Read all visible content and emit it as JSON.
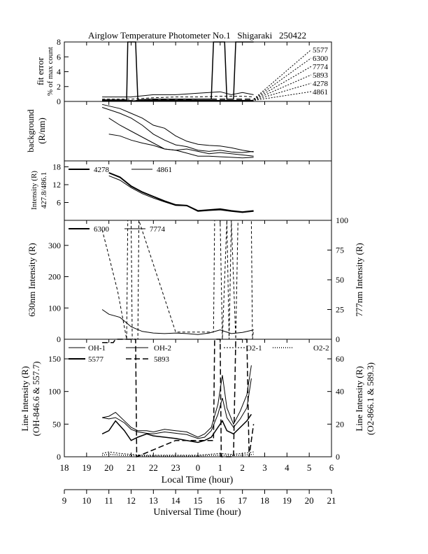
{
  "title": "Airglow Temperature Photometer No.1   Shigaraki   250422",
  "local_time_axis": {
    "label": "Local Time (hour)",
    "ticks": [
      "18",
      "19",
      "20",
      "21",
      "22",
      "23",
      "0",
      "1",
      "2",
      "3",
      "4",
      "5",
      "6"
    ]
  },
  "universal_time_axis": {
    "label": "Universal Time (hour)",
    "ticks": [
      "9",
      "10",
      "11",
      "12",
      "13",
      "14",
      "15",
      "16",
      "17",
      "18",
      "19",
      "20",
      "21"
    ]
  },
  "panels": {
    "fit_error": {
      "ylabel_lines": [
        "fit error",
        "% of max count"
      ],
      "yticks": [
        "0",
        "2",
        "4",
        "6",
        "8"
      ],
      "legend": [
        "5577",
        "6300",
        "7774",
        "5893",
        "4278",
        "4861"
      ]
    },
    "background": {
      "ylabel_lines": [
        "background",
        "(R/nm)"
      ]
    },
    "blue_intensity": {
      "ylabel_lines": [
        "Intensity (R)",
        "427.8/486.1"
      ],
      "yticks": [
        "6",
        "12",
        "18"
      ],
      "legend": [
        "4278",
        "4861"
      ]
    },
    "red_intensity": {
      "ylabel_left": "630nm Intensity (R)",
      "ylabel_right": "777nm Intensity (R)",
      "yticks_left": [
        "0",
        "100",
        "200",
        "300"
      ],
      "yticks_right": [
        "0",
        "25",
        "50",
        "75",
        "100"
      ],
      "legend": [
        "6300",
        "7774"
      ]
    },
    "line_intensity": {
      "ylabel_left_lines": [
        "Line Intensity (R)",
        "(OH-846.6 & 557.7)"
      ],
      "ylabel_right_lines": [
        "Line Intensity (R)",
        "(O2-866.1 & 589.3)"
      ],
      "yticks_left": [
        "0",
        "50",
        "100",
        "150"
      ],
      "yticks_right": [
        "0",
        "20",
        "40",
        "60"
      ],
      "legend": [
        "OH-1",
        "OH-2",
        "O2-1",
        "O2-2",
        "5577",
        "5893"
      ]
    }
  },
  "chart_data": [
    {
      "type": "line",
      "panel": "fit error",
      "ylim": [
        0,
        8
      ],
      "x_unit": "local time (hour)",
      "series": [
        {
          "name": "5577",
          "x": [
            19.7,
            20.8,
            20.85,
            21.2,
            21.3,
            22,
            23,
            0,
            0.6,
            0.7,
            1.2,
            1.3,
            1.6,
            1.7,
            2.5
          ],
          "y": [
            0.2,
            0.2,
            8,
            8,
            0.2,
            0.3,
            0.3,
            0.3,
            0.3,
            8,
            8,
            0.3,
            0.3,
            8,
            8
          ]
        },
        {
          "name": "6300",
          "x": [
            19.7,
            21,
            22,
            23,
            0,
            1,
            1.5,
            2,
            2.5
          ],
          "y": [
            0.6,
            0.6,
            0.9,
            0.9,
            1.1,
            1.3,
            0.9,
            1.2,
            0.9
          ]
        },
        {
          "name": "7774",
          "x": [
            19.7,
            21,
            22,
            23,
            0,
            1,
            2,
            2.5
          ],
          "y": [
            0.3,
            0.3,
            0.5,
            0.6,
            0.6,
            0.7,
            0.7,
            0.6
          ]
        },
        {
          "name": "5893",
          "x": [
            19.7,
            21,
            22,
            23,
            0,
            1,
            2,
            2.5
          ],
          "y": [
            0.1,
            0.1,
            0.2,
            0.2,
            0.3,
            0.3,
            0.3,
            0.3
          ]
        },
        {
          "name": "4278",
          "x": [
            19.7,
            21,
            22,
            23,
            0,
            1,
            2,
            2.5
          ],
          "y": [
            0.05,
            0.05,
            0.1,
            0.1,
            0.1,
            0.1,
            0.1,
            0.1
          ]
        },
        {
          "name": "4861",
          "x": [
            19.7,
            21,
            22,
            23,
            0,
            1,
            2,
            2.5
          ],
          "y": [
            0.05,
            0.05,
            0.05,
            0.1,
            0.1,
            0.1,
            0.1,
            0.1
          ]
        }
      ]
    },
    {
      "type": "line",
      "panel": "background (R/nm)",
      "series": [
        {
          "x": [
            19.7,
            20.5,
            21,
            21.5,
            22,
            22.5,
            23,
            23.5,
            0,
            0.5,
            1,
            1.5,
            2,
            2.5
          ],
          "y": [
            0.95,
            0.88,
            0.8,
            0.72,
            0.6,
            0.55,
            0.42,
            0.33,
            0.28,
            0.26,
            0.25,
            0.22,
            0.18,
            0.15
          ]
        },
        {
          "x": [
            19.7,
            20.5,
            21,
            21.5,
            22,
            22.5,
            23,
            23.5,
            0,
            0.5,
            1,
            1.5,
            2,
            2.5
          ],
          "y": [
            0.9,
            0.8,
            0.72,
            0.6,
            0.45,
            0.35,
            0.27,
            0.24,
            0.18,
            0.16,
            0.18,
            0.15,
            0.14,
            0.16
          ]
        },
        {
          "x": [
            20,
            20.5,
            21,
            21.5,
            22,
            22.5,
            23,
            23.5,
            0,
            0.5,
            1,
            1.5,
            2,
            2.5
          ],
          "y": [
            0.72,
            0.6,
            0.5,
            0.4,
            0.3,
            0.2,
            0.18,
            0.2,
            0.16,
            0.12,
            0.14,
            0.12,
            0.1,
            0.08
          ]
        },
        {
          "x": [
            20,
            20.5,
            21,
            21.5,
            22,
            22.5,
            23,
            23.5,
            0,
            0.5,
            1,
            1.5,
            2,
            2.5
          ],
          "y": [
            0.45,
            0.42,
            0.35,
            0.3,
            0.26,
            0.2,
            0.18,
            0.13,
            0.08,
            0.08,
            0.07,
            0.06,
            0.05,
            0.06
          ]
        }
      ]
    },
    {
      "type": "line",
      "panel": "Intensity 427.8/486.1",
      "ylim": [
        0,
        20
      ],
      "series": [
        {
          "name": "4278",
          "x": [
            20,
            20.5,
            21,
            21.5,
            22,
            22.5,
            23,
            23.5,
            0,
            0.5,
            1,
            1.5,
            2,
            2.5
          ],
          "y": [
            16,
            14.5,
            11.5,
            9.5,
            8,
            6.5,
            5.2,
            5,
            3.2,
            3.5,
            3.8,
            3.2,
            2.8,
            3.2
          ]
        },
        {
          "name": "4861",
          "x": [
            20,
            20.5,
            21,
            21.5,
            22,
            22.5,
            23,
            23.5,
            0,
            0.5,
            1,
            1.5,
            2,
            2.5
          ],
          "y": [
            15,
            13.5,
            11,
            9,
            7.5,
            6.2,
            5,
            4.9,
            3,
            3.3,
            3.5,
            3,
            2.6,
            3
          ]
        }
      ]
    },
    {
      "type": "line",
      "panel": "630nm / 777nm intensity",
      "ylim_left": [
        0,
        380
      ],
      "ylim_right": [
        0,
        100
      ],
      "series": [
        {
          "name": "6300",
          "axis": "left",
          "x": [
            19.7,
            20,
            20.5,
            21,
            21.5,
            22,
            22.5,
            23,
            23.5,
            0,
            0.5,
            1,
            1.5,
            2,
            2.5
          ],
          "y": [
            95,
            80,
            70,
            40,
            25,
            20,
            18,
            20,
            18,
            15,
            20,
            30,
            18,
            22,
            30
          ]
        },
        {
          "name": "7774",
          "axis": "right",
          "x": [
            19.7,
            20,
            20.4,
            20.8,
            20.85,
            21.0,
            21.05,
            21.3,
            21.35,
            23,
            0.7,
            0.75,
            1.0,
            1.1,
            1.3,
            1.4,
            1.5,
            1.7,
            1.8,
            2.4,
            2.45,
            2.5
          ],
          "y": [
            92,
            70,
            40,
            0,
            100,
            100,
            0,
            0,
            100,
            6,
            6,
            100,
            100,
            0,
            100,
            0,
            100,
            0,
            100,
            100,
            0,
            8
          ]
        }
      ]
    },
    {
      "type": "line",
      "panel": "Line Intensity",
      "ylim_left": [
        0,
        180
      ],
      "ylim_right": [
        0,
        72
      ],
      "series": [
        {
          "name": "OH-1",
          "axis": "left",
          "x": [
            19.7,
            20,
            20.3,
            20.7,
            21,
            21.3,
            21.7,
            22,
            22.5,
            23,
            23.5,
            0,
            0.3,
            0.6,
            0.9,
            1.1,
            1.3,
            1.6,
            1.9,
            2.2,
            2.4
          ],
          "y": [
            60,
            62,
            68,
            55,
            45,
            40,
            40,
            38,
            42,
            40,
            38,
            30,
            35,
            45,
            80,
            125,
            75,
            50,
            70,
            95,
            140
          ]
        },
        {
          "name": "OH-2",
          "axis": "left",
          "x": [
            19.7,
            20,
            20.3,
            20.7,
            21,
            21.3,
            21.7,
            22,
            22.5,
            23,
            23.5,
            0,
            0.3,
            0.6,
            0.9,
            1.1,
            1.3,
            1.6,
            1.9,
            2.2,
            2.4
          ],
          "y": [
            60,
            58,
            60,
            52,
            42,
            38,
            36,
            35,
            38,
            36,
            34,
            28,
            30,
            40,
            65,
            90,
            60,
            45,
            58,
            75,
            120
          ]
        },
        {
          "name": "5577",
          "axis": "left",
          "x": [
            19.7,
            20,
            20.3,
            20.7,
            21,
            21.3,
            21.7,
            22,
            22.5,
            23,
            23.5,
            0,
            0.3,
            0.6,
            0.9,
            1.1,
            1.3,
            1.6,
            1.9,
            2.2,
            2.4
          ],
          "y": [
            35,
            40,
            55,
            40,
            25,
            30,
            35,
            32,
            30,
            28,
            25,
            22,
            25,
            30,
            45,
            55,
            40,
            35,
            45,
            55,
            65
          ]
        },
        {
          "name": "5893",
          "axis": "right",
          "x": [
            19.7,
            20.2,
            20.3,
            21.2,
            21.25,
            23,
            0.7,
            0.75,
            1.0,
            1.05,
            1.6,
            1.7,
            2.2,
            2.3,
            2.5
          ],
          "y": [
            70,
            70,
            72,
            72,
            0,
            10,
            10,
            72,
            72,
            0,
            0,
            72,
            72,
            0,
            20
          ]
        },
        {
          "name": "O2-1",
          "axis": "right",
          "x": [
            19.7,
            20,
            20.5,
            21,
            21.5,
            22,
            22.5,
            23,
            23.5,
            0,
            0.5,
            1,
            1.5,
            2,
            2.5
          ],
          "y": [
            2,
            3,
            2,
            1.5,
            1,
            1,
            1,
            1,
            1,
            1,
            1.5,
            2,
            1.5,
            2,
            3
          ]
        },
        {
          "name": "O2-2",
          "axis": "right",
          "x": [
            19.7,
            20,
            20.5,
            21,
            21.5,
            22,
            22.5,
            23,
            23.5,
            0,
            0.5,
            1,
            1.5,
            2,
            2.5
          ],
          "y": [
            1,
            1.5,
            1,
            0.8,
            0.6,
            0.5,
            0.5,
            0.5,
            0.5,
            0.5,
            0.8,
            1,
            0.8,
            1,
            1.5
          ]
        }
      ]
    }
  ]
}
